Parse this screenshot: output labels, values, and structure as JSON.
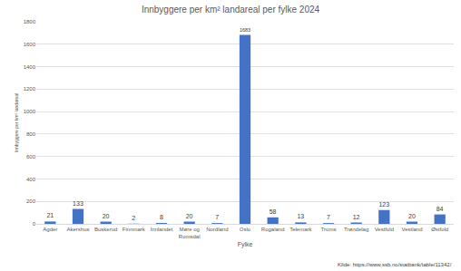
{
  "chart_data": {
    "type": "bar",
    "title": "Innbyggere per km² landareal per fylke 2024",
    "x_label": "Fylke",
    "y_label": "Innbyggere per km² landareal",
    "categories": [
      "Agder",
      "Akershus",
      "Buskerud",
      "Finnmark",
      "Innlandet",
      "Møre og Romsdal",
      "Nordland",
      "Oslo",
      "Rogaland",
      "Telemark",
      "Troms",
      "Trøndelag",
      "Vestfold",
      "Vestland",
      "Østfold"
    ],
    "values": [
      21,
      133,
      20,
      2,
      8,
      20,
      7,
      1683,
      58,
      13,
      7,
      12,
      123,
      20,
      84
    ],
    "color": "#4472c4",
    "ylim": [
      0,
      1800
    ],
    "yticks": [
      0,
      200,
      400,
      600,
      800,
      1000,
      1200,
      1400,
      1600,
      1800
    ],
    "grid": true,
    "data_labels": true,
    "annotations": [
      "Kilde: https://www.ssb.no/statbank/table/11342/"
    ]
  }
}
